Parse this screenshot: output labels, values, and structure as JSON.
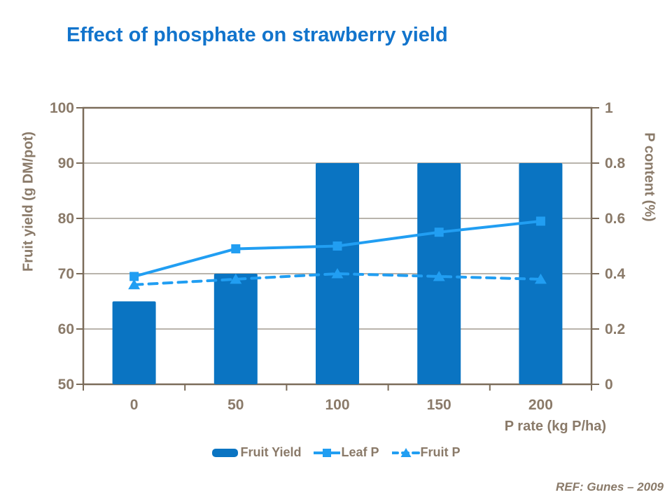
{
  "title": "Effect of phosphate on strawberry yield",
  "footer": {
    "ref": "REF: Gunes – 2009"
  },
  "colors": {
    "background": "#FFFFFF",
    "title": "#1274CC",
    "bar": "#0A74C2",
    "line": "#219EF2",
    "axis_text": "#8A7A69",
    "frame": "#7B6C5A",
    "grid": "#A29B91"
  },
  "chart_data": {
    "type": "bar",
    "subtype": "combo-bar-and-lines-dual-axis",
    "categories": [
      "0",
      "50",
      "100",
      "150",
      "200"
    ],
    "series": [
      {
        "name": "Fruit Yield",
        "type": "bar",
        "axis": "left",
        "marker": "none",
        "line_style": "none",
        "values": [
          65,
          70,
          90,
          90,
          90
        ]
      },
      {
        "name": "Leaf P",
        "type": "line",
        "axis": "right",
        "marker": "square",
        "line_style": "solid",
        "values": [
          0.39,
          0.49,
          0.5,
          0.55,
          0.59
        ]
      },
      {
        "name": "Fruit P",
        "type": "line",
        "axis": "right",
        "marker": "triangle",
        "line_style": "dashed",
        "values": [
          0.36,
          0.38,
          0.4,
          0.39,
          0.38
        ]
      }
    ],
    "title": "Effect of phosphate on strawberry yield",
    "xlabel": "P rate (kg P/ha)",
    "left_axis": {
      "title": "Fruit yield (g DM/pot)",
      "min": 50,
      "max": 100,
      "ticks": [
        "100",
        "90",
        "80",
        "70",
        "60",
        "50"
      ]
    },
    "right_axis": {
      "title": "P content (%)",
      "min": 0,
      "max": 1,
      "ticks": [
        "1",
        "0.8",
        "0.6",
        "0.4",
        "0.2",
        "0"
      ]
    },
    "grid": true,
    "legend_position": "bottom"
  }
}
